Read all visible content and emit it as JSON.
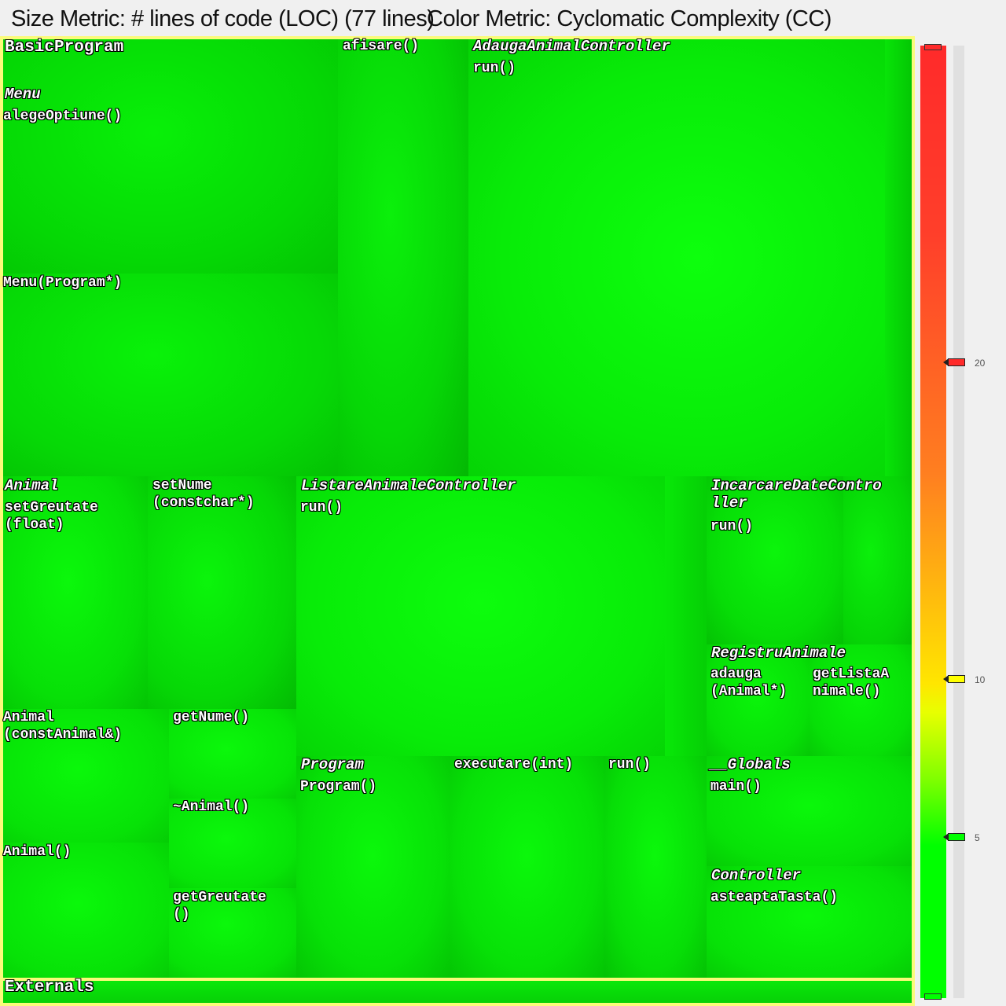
{
  "header": {
    "size_metric": "Size Metric: # lines of code (LOC) (77 lines)",
    "color_metric": "Color Metric: Cyclomatic Complexity (CC)"
  },
  "colors": {
    "low": "#00ff00",
    "mid": "#ffff00",
    "high": "#ff2a2a",
    "border": "#fbfb7a"
  },
  "treemap": {
    "labels": {
      "basicprogram": "BasicProgram",
      "menu": "Menu",
      "alegeoptiune": "alegeOptiune()",
      "menu_ctor": "Menu(Program*)",
      "afisare": "afisare()",
      "adauga_controller": "AdaugaAnimalController",
      "adauga_run": "run()",
      "animal": "Animal",
      "setgreutate": "setGreutate\n(float)",
      "setnume": "setNume\n(constchar*)",
      "animal_copy": "Animal\n(constAnimal&)",
      "getnume": "getNume()",
      "destructor": "~Animal()",
      "animal_ctor": "Animal()",
      "getgreutate": "getGreutate\n()",
      "listare_controller": "ListareAnimaleController",
      "listare_run": "run()",
      "incarcare_controller": "IncarcareDateContro\nller",
      "incarcare_run": "run()",
      "registru": "RegistruAnimale",
      "adauga": "adauga\n(Animal*)",
      "getlista": "getListaA\nnimale()",
      "program": "Program",
      "program_ctor": "Program()",
      "executare": "executare(int)",
      "program_run": "run()",
      "globals": "__Globals",
      "main": "main()",
      "controller": "Controller",
      "asteapta": "asteaptaTasta()",
      "externals": "Externals"
    }
  },
  "legend": {
    "ticks": [
      "20",
      "10",
      "5"
    ],
    "markers": [
      {
        "value": 25,
        "color": "#ff2a2a"
      },
      {
        "value": 20,
        "color": "#ff2a2a"
      },
      {
        "value": 10,
        "color": "#ffff00"
      },
      {
        "value": 5,
        "color": "#00ff00"
      },
      {
        "value": 0,
        "color": "#00ff00"
      }
    ]
  }
}
